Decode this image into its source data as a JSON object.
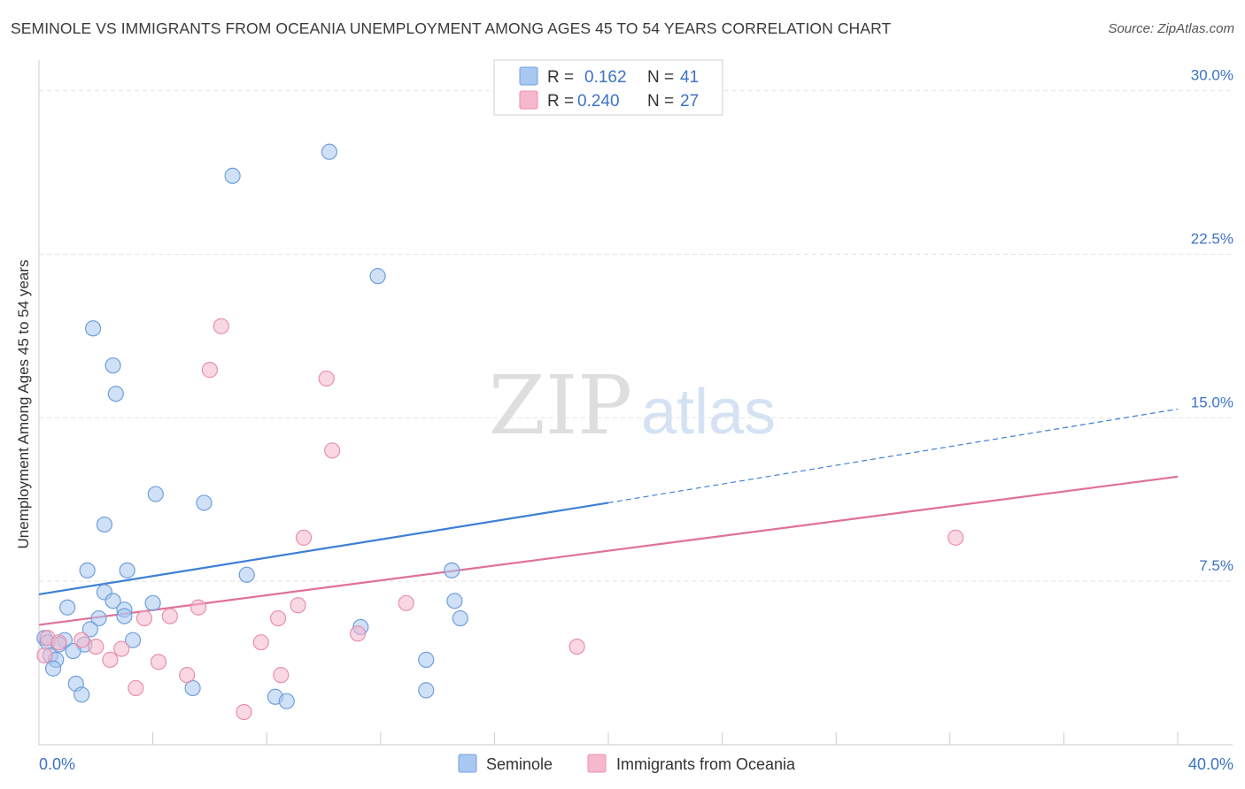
{
  "title": "SEMINOLE VS IMMIGRANTS FROM OCEANIA UNEMPLOYMENT AMONG AGES 45 TO 54 YEARS CORRELATION CHART",
  "source": "Source: ZipAtlas.com",
  "watermark": {
    "zip": "ZIP",
    "atlas": "atlas"
  },
  "colors": {
    "blue": "#3d7fd6",
    "blue_fill": "#a9c8f0",
    "pink": "#e0709a",
    "pink_fill": "#f6b8cc",
    "value_text": "#3d73c5",
    "grid": "#e3e3e3"
  },
  "legend": {
    "rows": [
      {
        "r_label": "R =",
        "r_value": "0.162",
        "n_label": "N =",
        "n_value": "41",
        "series": "blue"
      },
      {
        "r_label": "R =",
        "r_value": "0.240",
        "n_label": "N =",
        "n_value": "27",
        "series": "pink"
      }
    ]
  },
  "chart_data": {
    "type": "scatter",
    "title": "SEMINOLE VS IMMIGRANTS FROM OCEANIA UNEMPLOYMENT AMONG AGES 45 TO 54 YEARS CORRELATION CHART",
    "xlabel": "",
    "ylabel": "Unemployment Among Ages 45 to 54 years",
    "xlim": [
      0,
      40
    ],
    "ylim": [
      0,
      31
    ],
    "y_ticks": [
      7.5,
      15.0,
      22.5,
      30.0
    ],
    "y_tick_labels": [
      "7.5%",
      "15.0%",
      "22.5%",
      "30.0%"
    ],
    "x_tick_labels": [
      "0.0%",
      "40.0%"
    ],
    "x_minor_ticks": [
      4,
      8,
      12,
      16,
      20,
      24,
      28,
      32,
      36,
      40
    ],
    "grid": true,
    "series": [
      {
        "name": "Seminole",
        "color": "blue",
        "points": [
          [
            10.2,
            27.2
          ],
          [
            6.8,
            26.1
          ],
          [
            11.9,
            21.5
          ],
          [
            1.9,
            19.1
          ],
          [
            2.6,
            17.4
          ],
          [
            2.7,
            16.1
          ],
          [
            4.1,
            11.5
          ],
          [
            5.8,
            11.1
          ],
          [
            2.3,
            10.1
          ],
          [
            1.7,
            8.0
          ],
          [
            3.1,
            8.0
          ],
          [
            7.3,
            7.8
          ],
          [
            14.5,
            8.0
          ],
          [
            2.3,
            7.0
          ],
          [
            2.6,
            6.6
          ],
          [
            4.0,
            6.5
          ],
          [
            1.0,
            6.3
          ],
          [
            3.0,
            6.2
          ],
          [
            14.6,
            6.6
          ],
          [
            2.1,
            5.8
          ],
          [
            3.0,
            5.9
          ],
          [
            1.8,
            5.3
          ],
          [
            11.3,
            5.4
          ],
          [
            14.8,
            5.8
          ],
          [
            0.2,
            4.9
          ],
          [
            0.9,
            4.8
          ],
          [
            3.3,
            4.8
          ],
          [
            0.3,
            4.7
          ],
          [
            0.7,
            4.6
          ],
          [
            1.6,
            4.6
          ],
          [
            1.2,
            4.3
          ],
          [
            0.4,
            4.1
          ],
          [
            0.6,
            3.9
          ],
          [
            13.6,
            3.9
          ],
          [
            0.5,
            3.5
          ],
          [
            1.3,
            2.8
          ],
          [
            5.4,
            2.6
          ],
          [
            13.6,
            2.5
          ],
          [
            1.5,
            2.3
          ],
          [
            8.3,
            2.2
          ],
          [
            8.7,
            2.0
          ]
        ]
      },
      {
        "name": "Immigrants from Oceania",
        "color": "pink",
        "points": [
          [
            6.4,
            19.2
          ],
          [
            6.0,
            17.2
          ],
          [
            10.1,
            16.8
          ],
          [
            10.3,
            13.5
          ],
          [
            9.3,
            9.5
          ],
          [
            32.2,
            9.5
          ],
          [
            5.6,
            6.3
          ],
          [
            9.1,
            6.4
          ],
          [
            12.9,
            6.5
          ],
          [
            4.6,
            5.9
          ],
          [
            3.7,
            5.8
          ],
          [
            8.4,
            5.8
          ],
          [
            11.2,
            5.1
          ],
          [
            0.3,
            4.9
          ],
          [
            0.7,
            4.7
          ],
          [
            1.5,
            4.8
          ],
          [
            7.8,
            4.7
          ],
          [
            2.0,
            4.5
          ],
          [
            2.9,
            4.4
          ],
          [
            18.9,
            4.5
          ],
          [
            0.2,
            4.1
          ],
          [
            2.5,
            3.9
          ],
          [
            4.2,
            3.8
          ],
          [
            5.2,
            3.2
          ],
          [
            8.5,
            3.2
          ],
          [
            3.4,
            2.6
          ],
          [
            7.2,
            1.5
          ]
        ]
      }
    ],
    "trend_lines": [
      {
        "series": "Seminole",
        "x0": 0,
        "y0": 6.9,
        "x1": 20.0,
        "y1": 11.1,
        "dashed_to_x": 40,
        "dashed_to_y": 15.4
      },
      {
        "series": "Immigrants from Oceania",
        "x0": 0,
        "y0": 5.5,
        "x1": 40,
        "y1": 12.3
      }
    ]
  }
}
